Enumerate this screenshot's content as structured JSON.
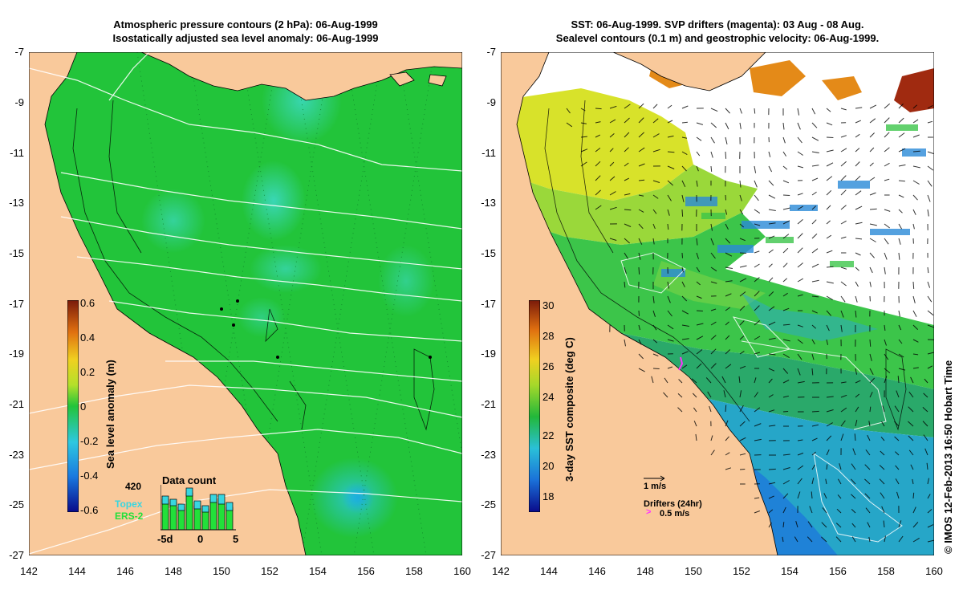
{
  "left_panel": {
    "title_line1": "Atmospheric pressure contours (2 hPa): 06-Aug-1999",
    "title_line2": "Isostatically adjusted sea level anomaly: 06-Aug-1999",
    "colorbar_label": "Sea level anomaly (m)",
    "colorbar_ticks": [
      "0.6",
      "0.4",
      "0.2",
      "0",
      "-0.2",
      "-0.4",
      "-0.6"
    ],
    "inset": {
      "title": "Data count",
      "max_label": "420",
      "legend_topex": "Topex",
      "legend_ers2": "ERS-2",
      "x_labels": [
        "-5d",
        "0",
        "5"
      ]
    }
  },
  "right_panel": {
    "title_line1": "SST: 06-Aug-1999. SVP drifters (magenta): 03 Aug - 08 Aug.",
    "title_line2": "Sealevel contours (0.1 m) and geostrophic velocity: 06-Aug-1999.",
    "colorbar_label": "3-day SST composite (deg C)",
    "colorbar_ticks": [
      "30",
      "28",
      "26",
      "24",
      "22",
      "20",
      "18"
    ],
    "velocity_label": "1 m/s",
    "drifters_label": "Drifters (24hr)",
    "drifter_speed_label": "0.5 m/s"
  },
  "lat_ticks": [
    "-7",
    "-9",
    "-11",
    "-13",
    "-15",
    "-17",
    "-19",
    "-21",
    "-23",
    "-25",
    "-27"
  ],
  "lon_ticks": [
    "142",
    "144",
    "146",
    "148",
    "150",
    "152",
    "154",
    "156",
    "158",
    "160"
  ],
  "credit": "© IMOS 12-Feb-2013 16:50 Hobart Time",
  "colors": {
    "land": "#f9c99b",
    "sla_ocean": "#22c43a",
    "sla_low": "#38d6c0",
    "sst_warm": "#d8e22a",
    "sst_mid": "#3cc54a",
    "sst_cool": "#1a7ad8",
    "drifter": "#ff33ff"
  }
}
